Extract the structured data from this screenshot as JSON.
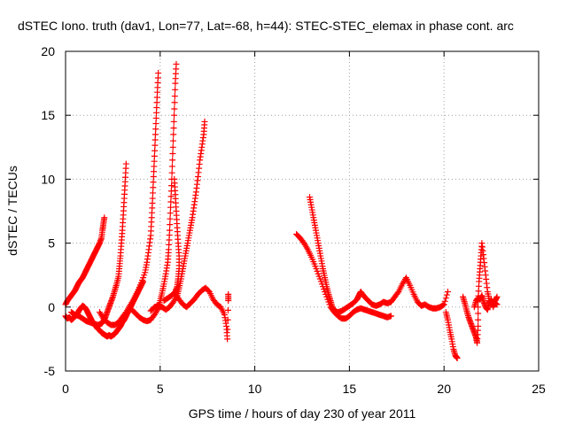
{
  "chart_data": {
    "type": "scatter",
    "title": "dSTEC Iono. truth (dav1, Lon=77, Lat=-68, h=44): STEC-STEC_elemax in phase cont. arc",
    "xlabel": "GPS time / hours of day 230 of year 2011",
    "ylabel": "dSTEC  / TECUs",
    "xlim": [
      0,
      25
    ],
    "ylim": [
      -5,
      20
    ],
    "xticks": [
      "0",
      "5",
      "10",
      "15",
      "20",
      "25"
    ],
    "yticks": [
      "-5",
      "0",
      "5",
      "10",
      "15",
      "20"
    ],
    "grid": true,
    "marker": "+",
    "color": "#ff0000",
    "series": [
      {
        "points": [
          [
            0.0,
            -0.7
          ],
          [
            0.1,
            -0.9
          ],
          [
            0.2,
            -0.8
          ],
          [
            0.3,
            -1.0
          ],
          [
            0.4,
            -0.9
          ],
          [
            0.5,
            -0.7
          ],
          [
            0.6,
            -0.6
          ],
          [
            0.7,
            -0.3
          ],
          [
            0.8,
            -0.1
          ],
          [
            0.9,
            0.1
          ],
          [
            1.0,
            0.0
          ],
          [
            1.1,
            -0.2
          ],
          [
            1.2,
            -0.5
          ],
          [
            1.3,
            -0.8
          ],
          [
            1.4,
            -1.1
          ],
          [
            1.5,
            -1.3
          ],
          [
            1.6,
            -1.5
          ],
          [
            1.7,
            -1.7
          ],
          [
            1.8,
            -1.8
          ],
          [
            1.9,
            -2.0
          ],
          [
            2.0,
            -2.1
          ],
          [
            2.1,
            -2.2
          ],
          [
            2.2,
            -2.3
          ],
          [
            2.3,
            -2.2
          ],
          [
            2.4,
            -2.3
          ],
          [
            2.5,
            -2.2
          ],
          [
            2.6,
            -2.1
          ],
          [
            2.7,
            -1.9
          ],
          [
            2.8,
            -1.7
          ],
          [
            2.9,
            -1.5
          ],
          [
            3.0,
            -1.2
          ],
          [
            3.1,
            -1.0
          ],
          [
            3.2,
            -0.7
          ],
          [
            3.3,
            -0.4
          ],
          [
            3.4,
            -0.1
          ],
          [
            3.5,
            0.2
          ],
          [
            3.6,
            0.5
          ],
          [
            3.7,
            0.8
          ],
          [
            3.8,
            1.1
          ],
          [
            3.9,
            1.4
          ],
          [
            4.0,
            1.7
          ],
          [
            4.1,
            2.0
          ]
        ]
      },
      {
        "points": [
          [
            0.0,
            0.2
          ],
          [
            0.1,
            0.5
          ],
          [
            0.2,
            0.7
          ],
          [
            0.3,
            0.9
          ],
          [
            0.4,
            1.1
          ],
          [
            0.5,
            1.3
          ],
          [
            0.6,
            1.6
          ],
          [
            0.7,
            1.9
          ],
          [
            0.8,
            2.1
          ],
          [
            0.9,
            2.3
          ],
          [
            1.0,
            2.6
          ],
          [
            1.1,
            2.9
          ],
          [
            1.2,
            3.2
          ],
          [
            1.3,
            3.5
          ],
          [
            1.4,
            3.8
          ],
          [
            1.5,
            4.1
          ],
          [
            1.6,
            4.4
          ],
          [
            1.7,
            4.7
          ],
          [
            1.8,
            5.0
          ],
          [
            1.9,
            5.4
          ],
          [
            1.95,
            6.0
          ],
          [
            2.0,
            6.5
          ],
          [
            2.05,
            7.0
          ]
        ]
      },
      {
        "points": [
          [
            0.3,
            -0.4
          ],
          [
            0.5,
            -0.6
          ],
          [
            0.7,
            -0.7
          ],
          [
            0.9,
            -0.9
          ],
          [
            1.1,
            -1.1
          ],
          [
            1.3,
            -1.2
          ],
          [
            1.5,
            -1.3
          ],
          [
            1.7,
            -1.4
          ],
          [
            1.9,
            -1.3
          ],
          [
            2.0,
            -1.1
          ],
          [
            2.1,
            -0.8
          ],
          [
            2.2,
            -0.4
          ],
          [
            2.3,
            0.0
          ],
          [
            2.4,
            0.4
          ],
          [
            2.5,
            0.8
          ],
          [
            2.6,
            1.3
          ],
          [
            2.7,
            1.8
          ],
          [
            2.8,
            2.4
          ],
          [
            2.85,
            3.2
          ],
          [
            2.9,
            4.0
          ],
          [
            2.95,
            5.0
          ],
          [
            3.0,
            6.0
          ],
          [
            3.05,
            7.2
          ],
          [
            3.1,
            8.5
          ],
          [
            3.15,
            9.8
          ],
          [
            3.2,
            11.2
          ]
        ]
      },
      {
        "points": [
          [
            1.8,
            -0.4
          ],
          [
            2.0,
            -0.9
          ],
          [
            2.2,
            -1.2
          ],
          [
            2.4,
            -1.4
          ],
          [
            2.6,
            -1.4
          ],
          [
            2.8,
            -1.2
          ],
          [
            3.0,
            -0.8
          ],
          [
            3.2,
            -0.4
          ],
          [
            3.4,
            0.1
          ],
          [
            3.6,
            0.6
          ],
          [
            3.8,
            1.2
          ],
          [
            4.0,
            1.9
          ],
          [
            4.2,
            2.7
          ],
          [
            4.3,
            3.5
          ],
          [
            4.4,
            4.5
          ],
          [
            4.5,
            5.6
          ],
          [
            4.55,
            7.0
          ],
          [
            4.6,
            8.5
          ],
          [
            4.65,
            10.2
          ],
          [
            4.7,
            11.8
          ],
          [
            4.75,
            13.5
          ],
          [
            4.8,
            15.2
          ],
          [
            4.85,
            16.8
          ],
          [
            4.9,
            18.3
          ]
        ]
      },
      {
        "points": [
          [
            3.5,
            -0.2
          ],
          [
            3.7,
            -0.5
          ],
          [
            3.9,
            -0.8
          ],
          [
            4.1,
            -1.0
          ],
          [
            4.3,
            -1.1
          ],
          [
            4.5,
            -1.0
          ],
          [
            4.7,
            -0.6
          ],
          [
            4.9,
            -0.1
          ],
          [
            5.0,
            0.5
          ],
          [
            5.1,
            1.1
          ],
          [
            5.2,
            1.8
          ],
          [
            5.3,
            2.6
          ],
          [
            5.4,
            3.5
          ],
          [
            5.45,
            4.5
          ],
          [
            5.5,
            6.0
          ],
          [
            5.55,
            7.8
          ],
          [
            5.6,
            9.5
          ],
          [
            5.65,
            11.5
          ],
          [
            5.7,
            13.5
          ],
          [
            5.75,
            15.5
          ],
          [
            5.8,
            17.5
          ],
          [
            5.85,
            19.0
          ]
        ]
      },
      {
        "points": [
          [
            4.5,
            -0.3
          ],
          [
            4.7,
            0.0
          ],
          [
            4.9,
            0.1
          ],
          [
            5.1,
            0.0
          ],
          [
            5.3,
            -0.2
          ],
          [
            5.5,
            0.0
          ],
          [
            5.7,
            0.4
          ],
          [
            5.9,
            0.9
          ],
          [
            6.0,
            1.5
          ],
          [
            6.1,
            2.2
          ],
          [
            6.2,
            3.0
          ],
          [
            6.3,
            3.8
          ],
          [
            6.4,
            4.6
          ],
          [
            6.5,
            5.4
          ],
          [
            6.6,
            6.2
          ],
          [
            6.7,
            7.0
          ],
          [
            6.8,
            8.0
          ],
          [
            6.9,
            9.0
          ],
          [
            7.0,
            10.2
          ],
          [
            7.1,
            11.5
          ],
          [
            7.2,
            12.5
          ],
          [
            7.3,
            13.5
          ],
          [
            7.35,
            14.5
          ]
        ]
      },
      {
        "points": [
          [
            5.2,
            0.5
          ],
          [
            5.4,
            0.7
          ],
          [
            5.6,
            0.9
          ],
          [
            5.8,
            1.2
          ],
          [
            5.9,
            1.6
          ],
          [
            5.95,
            2.2
          ],
          [
            6.0,
            3.0
          ],
          [
            6.0,
            4.0
          ],
          [
            5.95,
            5.0
          ],
          [
            5.9,
            6.2
          ],
          [
            5.85,
            7.5
          ],
          [
            5.8,
            8.8
          ],
          [
            5.75,
            10.0
          ]
        ]
      },
      {
        "points": [
          [
            5.8,
            1.0
          ],
          [
            6.0,
            0.6
          ],
          [
            6.2,
            0.2
          ],
          [
            6.4,
            0.0
          ],
          [
            6.6,
            0.3
          ],
          [
            6.8,
            0.6
          ],
          [
            7.0,
            1.0
          ],
          [
            7.2,
            1.3
          ],
          [
            7.4,
            1.5
          ],
          [
            7.6,
            1.2
          ],
          [
            7.8,
            0.6
          ],
          [
            8.0,
            0.2
          ],
          [
            8.2,
            0.0
          ],
          [
            8.4,
            -0.6
          ],
          [
            8.5,
            -1.5
          ],
          [
            8.55,
            -2.5
          ],
          [
            8.6,
            0.5
          ],
          [
            8.6,
            1.0
          ]
        ]
      },
      {
        "points": [
          [
            12.2,
            5.7
          ],
          [
            12.4,
            5.4
          ],
          [
            12.6,
            5.0
          ],
          [
            12.8,
            4.5
          ],
          [
            13.0,
            3.9
          ],
          [
            13.2,
            3.2
          ],
          [
            13.4,
            2.4
          ],
          [
            13.6,
            1.6
          ],
          [
            13.8,
            0.8
          ],
          [
            14.0,
            0.0
          ],
          [
            14.2,
            -0.4
          ],
          [
            14.4,
            -0.7
          ],
          [
            14.6,
            -0.9
          ],
          [
            14.8,
            -0.9
          ],
          [
            15.0,
            -0.7
          ],
          [
            15.2,
            -0.4
          ],
          [
            15.4,
            -0.2
          ],
          [
            15.6,
            -0.1
          ],
          [
            15.8,
            -0.2
          ],
          [
            16.0,
            -0.3
          ],
          [
            16.2,
            -0.4
          ],
          [
            16.4,
            -0.5
          ],
          [
            16.6,
            -0.6
          ],
          [
            16.8,
            -0.7
          ],
          [
            17.0,
            -0.8
          ],
          [
            17.2,
            -0.7
          ]
        ]
      },
      {
        "points": [
          [
            12.9,
            8.6
          ],
          [
            13.0,
            7.8
          ],
          [
            13.1,
            7.0
          ],
          [
            13.2,
            6.2
          ],
          [
            13.3,
            5.4
          ],
          [
            13.4,
            4.6
          ],
          [
            13.5,
            3.8
          ],
          [
            13.6,
            3.0
          ],
          [
            13.7,
            2.3
          ],
          [
            13.8,
            1.6
          ],
          [
            13.9,
            1.0
          ],
          [
            14.0,
            0.5
          ],
          [
            14.1,
            0.0
          ],
          [
            14.2,
            -0.3
          ],
          [
            14.4,
            -0.4
          ],
          [
            14.6,
            -0.3
          ],
          [
            14.8,
            -0.1
          ],
          [
            15.0,
            0.1
          ],
          [
            15.2,
            0.3
          ],
          [
            15.4,
            0.6
          ],
          [
            15.5,
            0.9
          ],
          [
            15.6,
            1.2
          ],
          [
            15.8,
            0.8
          ],
          [
            16.0,
            0.5
          ],
          [
            16.2,
            0.2
          ],
          [
            16.4,
            0.1
          ],
          [
            16.6,
            0.2
          ],
          [
            16.8,
            0.4
          ],
          [
            17.0,
            0.3
          ],
          [
            17.2,
            0.4
          ],
          [
            17.4,
            0.8
          ],
          [
            17.6,
            1.2
          ],
          [
            17.8,
            1.8
          ],
          [
            18.0,
            2.3
          ],
          [
            18.2,
            1.7
          ],
          [
            18.4,
            1.0
          ],
          [
            18.6,
            0.4
          ],
          [
            18.8,
            0.1
          ],
          [
            19.0,
            0.2
          ],
          [
            19.2,
            0.0
          ],
          [
            19.4,
            -0.1
          ],
          [
            19.6,
            -0.1
          ],
          [
            19.8,
            0.0
          ],
          [
            20.0,
            0.2
          ],
          [
            20.2,
            1.2
          ]
        ]
      },
      {
        "points": [
          [
            20.1,
            -0.4
          ],
          [
            20.2,
            -1.0
          ],
          [
            20.3,
            -1.8
          ],
          [
            20.4,
            -2.5
          ],
          [
            20.5,
            -3.3
          ],
          [
            20.6,
            -3.8
          ],
          [
            20.7,
            -4.0
          ]
        ]
      },
      {
        "points": [
          [
            21.0,
            0.8
          ],
          [
            21.1,
            0.3
          ],
          [
            21.2,
            -0.3
          ],
          [
            21.3,
            -0.8
          ],
          [
            21.4,
            -1.2
          ],
          [
            21.5,
            -1.6
          ],
          [
            21.6,
            -2.0
          ],
          [
            21.7,
            -2.4
          ],
          [
            21.75,
            -2.8
          ],
          [
            21.8,
            -1.5
          ],
          [
            21.8,
            0.5
          ],
          [
            21.85,
            2.0
          ],
          [
            21.9,
            3.0
          ],
          [
            21.95,
            4.0
          ],
          [
            22.0,
            5.0
          ],
          [
            22.1,
            3.8
          ],
          [
            22.2,
            2.5
          ],
          [
            22.3,
            1.2
          ],
          [
            22.4,
            0.5
          ],
          [
            22.5,
            0.2
          ],
          [
            22.6,
            0.4
          ],
          [
            22.7,
            0.3
          ],
          [
            22.8,
            0.2
          ]
        ]
      },
      {
        "points": [
          [
            21.6,
            0.0
          ],
          [
            21.7,
            0.5
          ],
          [
            21.8,
            0.7
          ],
          [
            21.9,
            0.6
          ],
          [
            22.0,
            0.9
          ],
          [
            22.1,
            0.4
          ],
          [
            22.2,
            0.0
          ],
          [
            22.3,
            -0.2
          ],
          [
            22.4,
            0.3
          ],
          [
            22.5,
            0.6
          ],
          [
            22.6,
            0.0
          ],
          [
            22.7,
            0.5
          ],
          [
            22.8,
            0.8
          ]
        ]
      }
    ]
  }
}
